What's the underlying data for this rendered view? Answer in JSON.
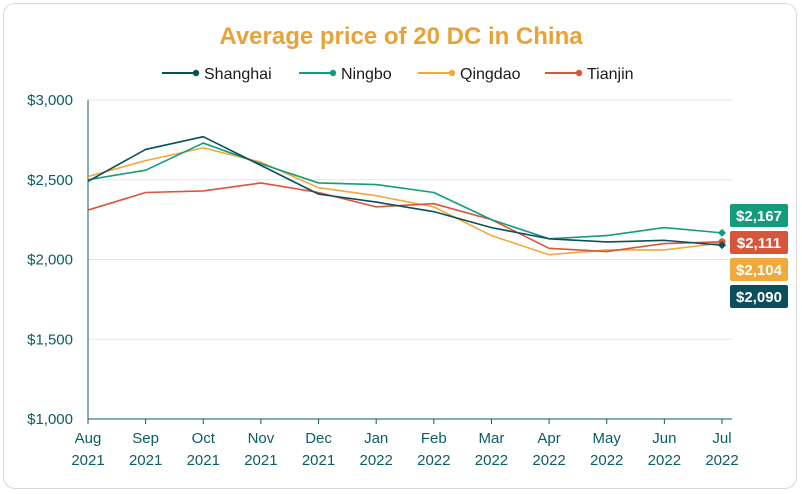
{
  "chart_data": {
    "type": "line",
    "title": "Average price of 20 DC in China",
    "title_color": "#e8a23a",
    "axis_text_color": "#0b5d61",
    "grid": true,
    "legend_position": "top",
    "ylim": [
      1000,
      3000
    ],
    "y_ticks": [
      {
        "value": 3000,
        "label": "$3,000"
      },
      {
        "value": 2500,
        "label": "$2,500"
      },
      {
        "value": 2000,
        "label": "$2,000"
      },
      {
        "value": 1500,
        "label": "$1,500"
      },
      {
        "value": 1000,
        "label": "$1,000"
      }
    ],
    "categories": [
      {
        "month": "Aug",
        "year": "2021"
      },
      {
        "month": "Sep",
        "year": "2021"
      },
      {
        "month": "Oct",
        "year": "2021"
      },
      {
        "month": "Nov",
        "year": "2021"
      },
      {
        "month": "Dec",
        "year": "2021"
      },
      {
        "month": "Jan",
        "year": "2022"
      },
      {
        "month": "Feb",
        "year": "2022"
      },
      {
        "month": "Mar",
        "year": "2022"
      },
      {
        "month": "Apr",
        "year": "2022"
      },
      {
        "month": "May",
        "year": "2022"
      },
      {
        "month": "Jun",
        "year": "2022"
      },
      {
        "month": "Jul",
        "year": "2022"
      }
    ],
    "series": [
      {
        "name": "Shanghai",
        "color": "#0b4f5c",
        "values": [
          2490,
          2690,
          2770,
          2590,
          2410,
          2360,
          2300,
          2200,
          2130,
          2110,
          2120,
          2090
        ],
        "end_label": "$2,090",
        "end_marker": "diamond"
      },
      {
        "name": "Ningbo",
        "color": "#139c7c",
        "values": [
          2500,
          2560,
          2730,
          2600,
          2480,
          2470,
          2420,
          2250,
          2130,
          2150,
          2200,
          2167
        ],
        "end_label": "$2,167",
        "end_marker": "diamond"
      },
      {
        "name": "Qingdao",
        "color": "#f0a93a",
        "values": [
          2520,
          2620,
          2700,
          2610,
          2450,
          2400,
          2330,
          2150,
          2030,
          2060,
          2060,
          2104
        ],
        "end_label": "$2,104",
        "end_marker": "circle"
      },
      {
        "name": "Tianjin",
        "color": "#d9553a",
        "values": [
          2310,
          2420,
          2430,
          2480,
          2420,
          2330,
          2350,
          2250,
          2070,
          2050,
          2100,
          2111
        ],
        "end_label": "$2,111",
        "end_marker": "circle"
      }
    ],
    "badge_order": [
      "Ningbo",
      "Tianjin",
      "Qingdao",
      "Shanghai"
    ]
  }
}
